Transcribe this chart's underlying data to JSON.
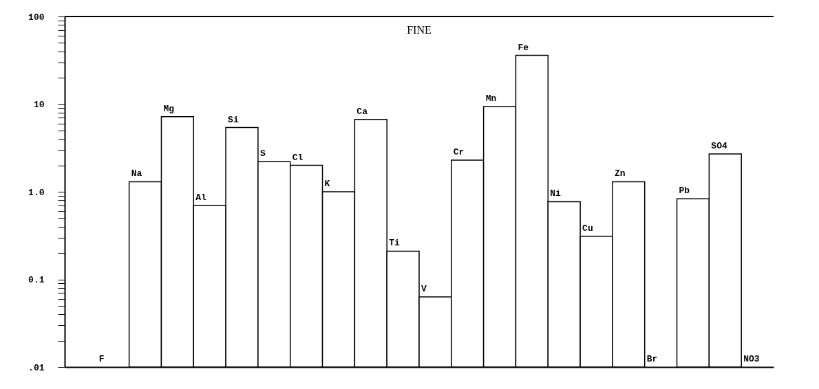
{
  "chart_data": {
    "type": "bar",
    "title": "FINE",
    "categories": [
      "F",
      "Na",
      "Mg",
      "Al",
      "Si",
      "S",
      "Cl",
      "K",
      "Ca",
      "Ti",
      "V",
      "Cr",
      "Mn",
      "Fe",
      "Ni",
      "Cu",
      "Zn",
      "Br",
      "Pb",
      "SO4",
      "NO3"
    ],
    "series": [
      {
        "color": "#000000",
        "values": [
          null,
          1.3,
          7.2,
          0.7,
          5.4,
          2.2,
          2.0,
          1.0,
          6.7,
          0.21,
          0.063,
          2.3,
          9.4,
          36,
          0.77,
          0.31,
          1.3,
          null,
          0.83,
          2.7,
          null
        ]
      }
    ],
    "log": true,
    "ylim": [
      0.01,
      100
    ],
    "yticks": [
      {
        "value": 0.01,
        "label": ".01"
      },
      {
        "value": 0.02,
        "label": null
      },
      {
        "value": 0.03,
        "label": null
      },
      {
        "value": 0.04,
        "label": null
      },
      {
        "value": 0.05,
        "label": null
      },
      {
        "value": 0.06,
        "label": null
      },
      {
        "value": 0.07,
        "label": null
      },
      {
        "value": 0.08,
        "label": null
      },
      {
        "value": 0.09,
        "label": null
      },
      {
        "value": 0.1,
        "label": "0.1"
      },
      {
        "value": 0.2,
        "label": null
      },
      {
        "value": 0.3,
        "label": null
      },
      {
        "value": 0.4,
        "label": null
      },
      {
        "value": 0.5,
        "label": null
      },
      {
        "value": 0.6,
        "label": null
      },
      {
        "value": 0.7,
        "label": null
      },
      {
        "value": 0.8,
        "label": null
      },
      {
        "value": 0.9,
        "label": null
      },
      {
        "value": 1,
        "label": "1.0"
      },
      {
        "value": 2,
        "label": null
      },
      {
        "value": 3,
        "label": null
      },
      {
        "value": 4,
        "label": null
      },
      {
        "value": 5,
        "label": null
      },
      {
        "value": 6,
        "label": null
      },
      {
        "value": 7,
        "label": null
      },
      {
        "value": 8,
        "label": null
      },
      {
        "value": 9,
        "label": null
      },
      10,
      {
        "value": 20,
        "label": null
      },
      {
        "value": 30,
        "label": null
      },
      {
        "value": 40,
        "label": null
      },
      {
        "value": 50,
        "label": null
      },
      {
        "value": 60,
        "label": null
      },
      {
        "value": 70,
        "label": null
      },
      {
        "value": 80,
        "label": null
      },
      {
        "value": 90,
        "label": null
      },
      100
    ],
    "grid": false
  }
}
